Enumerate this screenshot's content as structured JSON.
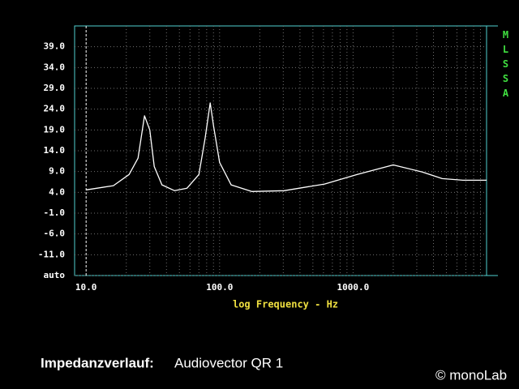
{
  "chart_data": {
    "type": "line",
    "x_label": "log Frequency - Hz",
    "side_label": "MLSSA",
    "caption_label": "Impedanzverlauf:",
    "caption_text": "Audiovector QR 1",
    "credit": "© monoLab",
    "x_log": true,
    "grid": true,
    "xlim": [
      8.2,
      10000
    ],
    "xticks": [
      {
        "value": 10,
        "label": "10.0"
      },
      {
        "value": 100,
        "label": "100.0"
      },
      {
        "value": 1000,
        "label": "1000.0"
      }
    ],
    "x_minor_ticks": [
      20,
      30,
      40,
      50,
      60,
      70,
      80,
      90,
      200,
      300,
      400,
      500,
      600,
      700,
      800,
      900,
      2000,
      3000,
      4000,
      5000,
      6000,
      7000,
      8000,
      9000
    ],
    "ylim": [
      -16,
      44
    ],
    "yticks": [
      {
        "value": -16,
        "label": "auto"
      },
      {
        "value": -11,
        "label": "-11.0"
      },
      {
        "value": -6,
        "label": "-6.0"
      },
      {
        "value": -1,
        "label": "-1.0"
      },
      {
        "value": 4,
        "label": "4.0"
      },
      {
        "value": 9,
        "label": "9.0"
      },
      {
        "value": 14,
        "label": "14.0"
      },
      {
        "value": 19,
        "label": "19.0"
      },
      {
        "value": 24,
        "label": "24.0"
      },
      {
        "value": 29,
        "label": "29.0"
      },
      {
        "value": 34,
        "label": "34.0"
      },
      {
        "value": 39,
        "label": "39.0"
      }
    ],
    "series": [
      {
        "color": "#ffffff",
        "x": [
          10,
          16,
          21,
          24.5,
          27.4,
          30,
          32.4,
          37,
          46,
          57,
          70,
          78,
          85,
          90,
          100,
          122,
          174,
          304,
          611,
          1075,
          2000,
          3300,
          4650,
          6660,
          10000
        ],
        "values": [
          4.6,
          5.6,
          8.3,
          12.2,
          22.4,
          19,
          10.2,
          5.8,
          4.4,
          5,
          8.3,
          17.1,
          25.5,
          20,
          11.2,
          5.8,
          4.2,
          4.4,
          6,
          8.3,
          10.6,
          8.9,
          7.3,
          6.9,
          6.9
        ]
      }
    ]
  }
}
